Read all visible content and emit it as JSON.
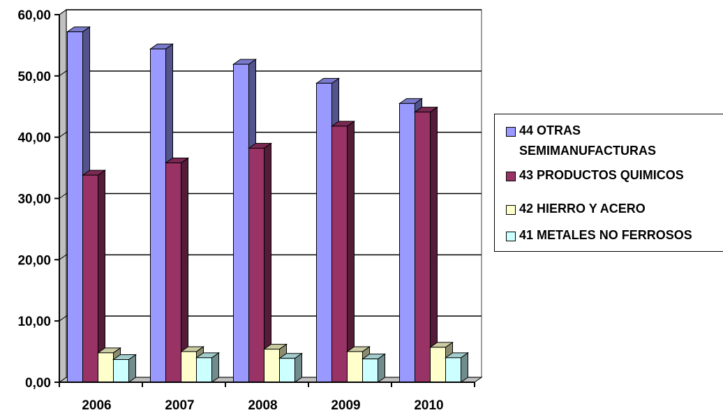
{
  "chart_data": {
    "type": "bar",
    "style": "3d-clustered-column",
    "categories": [
      "2006",
      "2007",
      "2008",
      "2009",
      "2010"
    ],
    "series": [
      {
        "name": "44 OTRAS SEMIMANUFACTURAS",
        "color": "#9999ff",
        "values": [
          57.2,
          54.4,
          51.9,
          48.8,
          45.5
        ]
      },
      {
        "name": "43 PRODUCTOS QUIMICOS",
        "color": "#993366",
        "values": [
          33.8,
          35.8,
          38.2,
          41.8,
          44.1
        ]
      },
      {
        "name": "42 HIERRO Y ACERO",
        "color": "#ffffcc",
        "values": [
          4.8,
          5.0,
          5.4,
          5.0,
          5.7
        ]
      },
      {
        "name": "41 METALES NO FERROSOS",
        "color": "#ccffff",
        "values": [
          3.7,
          4.0,
          3.9,
          3.8,
          4.0
        ]
      }
    ],
    "y_ticks": [
      "0,00",
      "10,00",
      "20,00",
      "30,00",
      "40,00",
      "50,00",
      "60,00"
    ],
    "ylim": [
      0,
      60
    ],
    "grid": true,
    "legend_position": "right"
  }
}
